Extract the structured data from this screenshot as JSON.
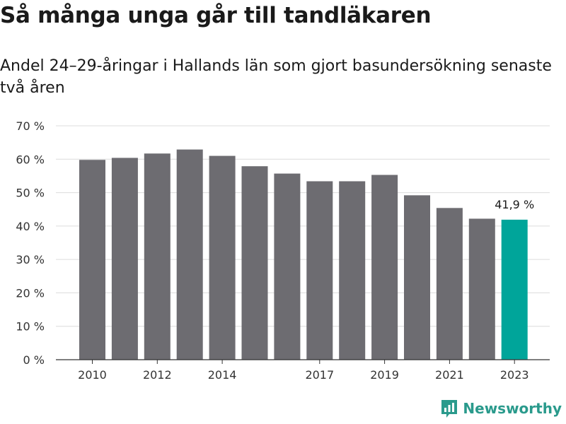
{
  "title": "Så många unga går till tandläkaren",
  "subtitle": "Andel 24–29-åringar i Hallands län som gjort basundersökning senaste två åren",
  "brand": {
    "name": "Newsworthy",
    "icon": "newsworthy-chart-logo-icon",
    "color": "#2a9a8c"
  },
  "colors": {
    "bar": "#6d6c71",
    "highlight": "#00a59a",
    "grid": "#dcdcdc",
    "axis": "#333333"
  },
  "chart_data": {
    "type": "bar",
    "categories": [
      "2010",
      "2011",
      "2012",
      "2013",
      "2014",
      "2015",
      "2016",
      "2017",
      "2018",
      "2019",
      "2020",
      "2021",
      "2022",
      "2023"
    ],
    "values": [
      59.8,
      60.4,
      61.7,
      62.9,
      61.0,
      57.9,
      55.7,
      53.4,
      53.4,
      55.3,
      49.2,
      45.4,
      42.2,
      41.9
    ],
    "x_tick_labels": [
      "2010",
      "",
      "2012",
      "",
      "2014",
      "",
      "",
      "2017",
      "",
      "2019",
      "",
      "2021",
      "",
      "2023"
    ],
    "y_ticks": [
      "0 %",
      "10 %",
      "20 %",
      "30 %",
      "40 %",
      "50 %",
      "60 %",
      "70 %"
    ],
    "ylim": [
      0,
      70
    ],
    "highlight_index": 13,
    "annotations": [
      {
        "category": "2023",
        "text": "41,9 %"
      }
    ],
    "grid": true,
    "xlabel": "",
    "ylabel": ""
  }
}
